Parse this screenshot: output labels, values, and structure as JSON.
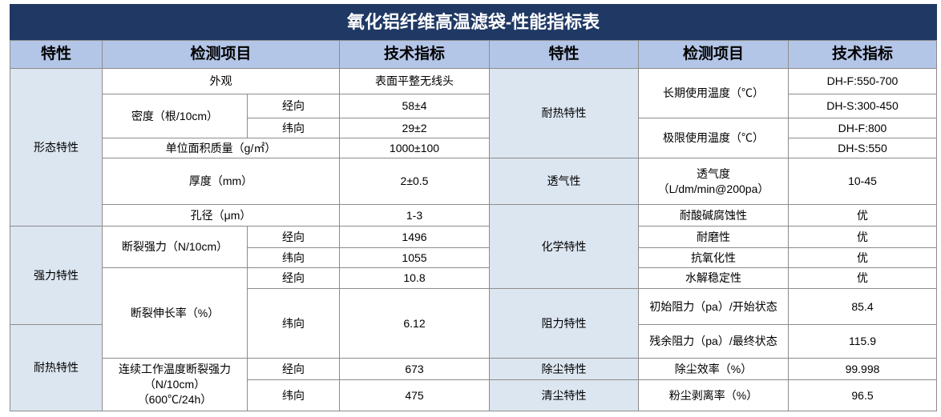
{
  "title": "氧化铝纤维高温滤袋-性能指标表",
  "header": [
    "特性",
    "检测项目",
    "技术指标",
    "特性",
    "检测项目",
    "技术指标"
  ],
  "cells": [
    "形态特性",
    "强力特性",
    "耐热特性",
    "外观",
    "表面平整无线头",
    "密度（根/10cm）",
    "经向",
    "58±4",
    "纬向",
    "29±2",
    "单位面积质量（g/㎡）",
    "1000±100",
    "厚度（mm）",
    "2±0.5",
    "孔径（μm）",
    "1-3",
    "断裂强力（N/10cm）",
    "经向",
    "1496",
    "纬向",
    "1055",
    "断裂伸长率（%）",
    "经向",
    "10.8",
    "纬向",
    "6.12",
    "连续工作温度断裂强力\n（N/10cm）\n（600℃/24h）",
    "经向",
    "673",
    "纬向",
    "475",
    "耐热特性",
    "透气性",
    "化学特性",
    "阻力特性",
    "除尘特性",
    "清尘特性",
    "长期使用温度（℃）",
    "DH-F:550-700",
    "DH-S:300-450",
    "极限使用温度（℃）",
    "DH-F:800",
    "DH-S:550",
    "透气度\n（L/dm/min@200pa）",
    "10-45",
    "耐酸碱腐蚀性",
    "优",
    "耐磨性",
    "优",
    "抗氧化性",
    "优",
    "水解稳定性",
    "优",
    "初始阻力（pa）/开始状态",
    "85.4",
    "残余阻力（pa）/最终状态",
    "115.9",
    "除尘效率（%）",
    "99.998",
    "粉尘剥离率（%）",
    "96.5"
  ]
}
